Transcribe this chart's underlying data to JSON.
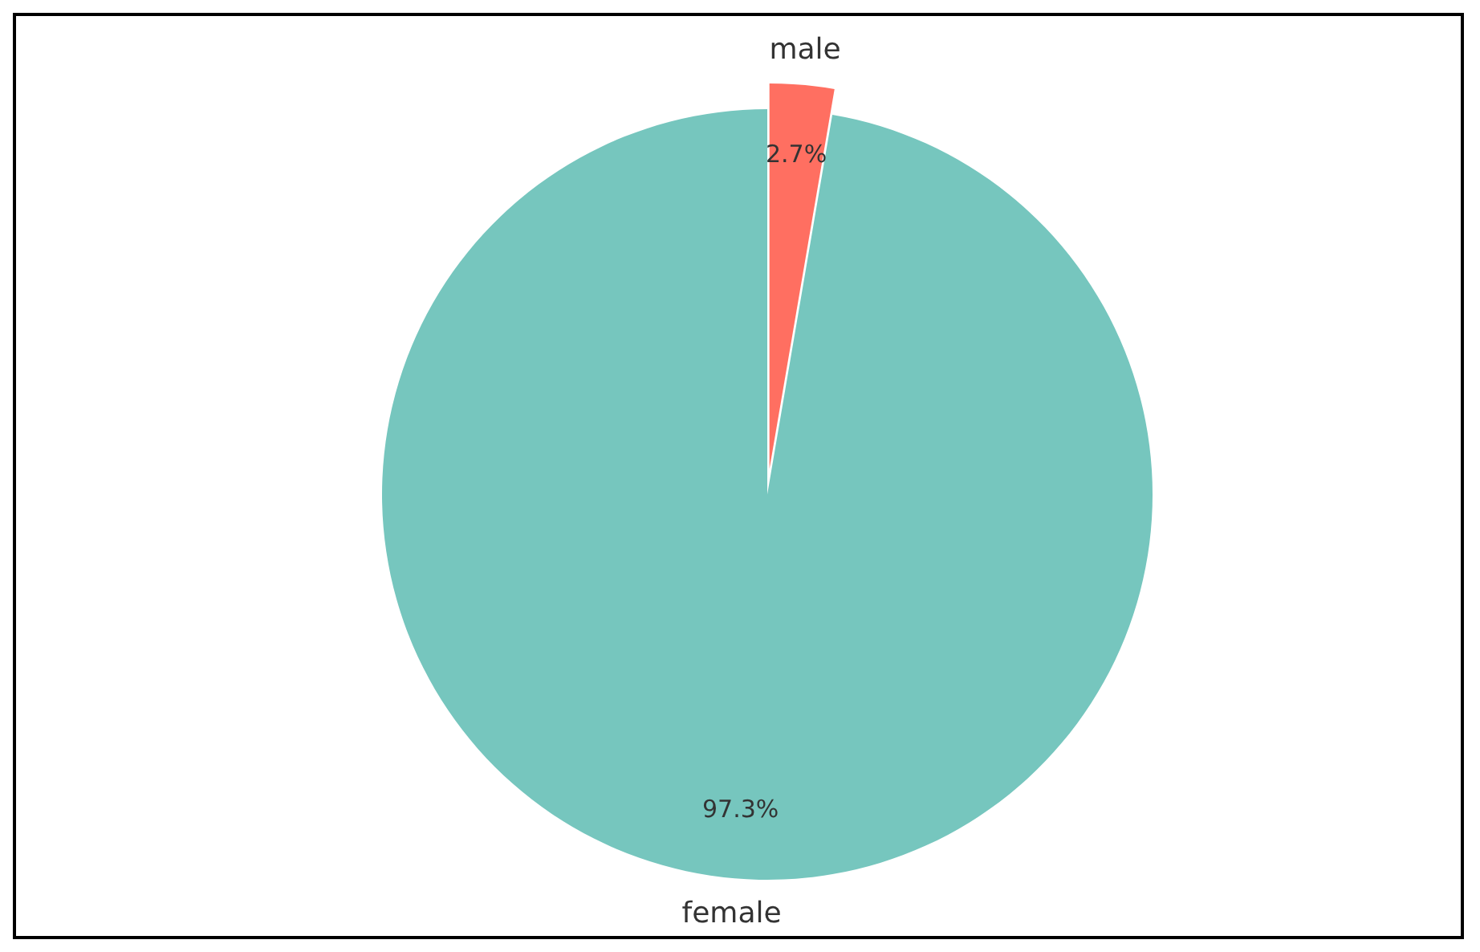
{
  "chart_data": {
    "type": "pie",
    "categories": [
      "female",
      "male"
    ],
    "values": [
      97.3,
      2.7
    ],
    "colors": [
      "#76c6be",
      "#ff6f61"
    ],
    "value_labels": [
      "97.3%",
      "2.7%"
    ]
  }
}
